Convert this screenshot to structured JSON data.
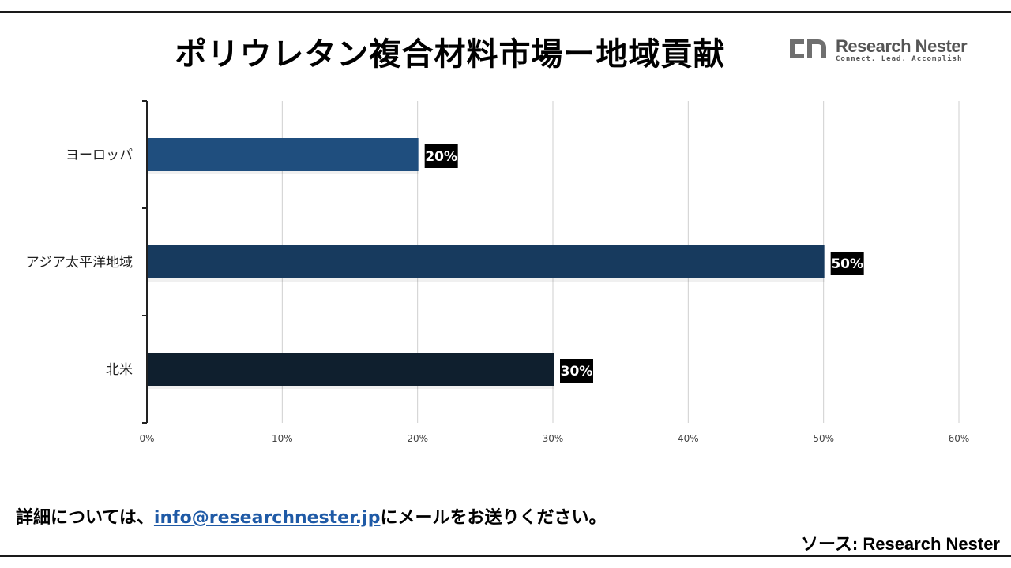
{
  "header": {
    "title": "ポリウレタン複合材料市場ー地域貢献"
  },
  "logo": {
    "name": "Research Nester",
    "tagline": "Connect. Lead. Accomplish"
  },
  "chart_data": {
    "type": "bar",
    "orientation": "horizontal",
    "categories": [
      "ヨーロッパ",
      "アジア太平洋地域",
      "北米"
    ],
    "values": [
      20,
      50,
      30
    ],
    "data_labels": [
      "20%",
      "50%",
      "30%"
    ],
    "bar_colors": [
      "#1f4e7e",
      "#173a5e",
      "#0f1f2e"
    ],
    "xlim": [
      0,
      60
    ],
    "x_ticks": [
      "0%",
      "10%",
      "20%",
      "30%",
      "40%",
      "50%",
      "60%"
    ],
    "grid": true,
    "title": "",
    "xlabel": "",
    "ylabel": ""
  },
  "footer": {
    "contact_prefix": "詳細については、",
    "contact_email": "info@researchnester.jp",
    "contact_suffix": "にメールをお送りください。",
    "source": "ソース: Research Nester"
  }
}
